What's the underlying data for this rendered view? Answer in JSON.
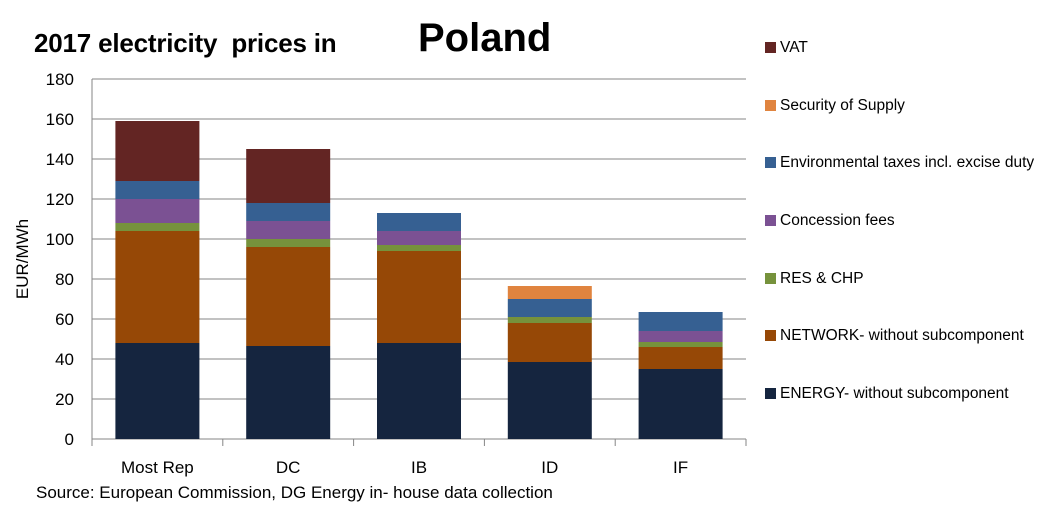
{
  "title": {
    "prefix": "2017 electricity  prices in",
    "country": "Poland"
  },
  "source": "Source: European Commission, DG Energy in- house data collection",
  "colors": {
    "ENERGY": "#15253f",
    "NETWORK": "#964806",
    "RES": "#76923c",
    "CONCESSION": "#7b5193",
    "ENVTAX": "#366092",
    "SECURITY": "#e0843f",
    "VAT": "#632523"
  },
  "chart_data": {
    "type": "bar",
    "stacked": true,
    "title": "2017 electricity  prices in Poland",
    "xlabel": "",
    "ylabel": "EUR/MWh",
    "ylim": [
      0,
      180
    ],
    "yticks": [
      0,
      20,
      40,
      60,
      80,
      100,
      120,
      140,
      160,
      180
    ],
    "grid": true,
    "categories": [
      "Most Rep",
      "DC",
      "IB",
      "ID",
      "IF"
    ],
    "series": [
      {
        "name": "ENERGY- without subcomponent",
        "key": "ENERGY",
        "values": [
          48,
          46.5,
          48,
          38.5,
          35
        ]
      },
      {
        "name": "NETWORK- without subcomponent",
        "key": "NETWORK",
        "values": [
          56,
          49.5,
          46,
          19.5,
          11
        ]
      },
      {
        "name": "RES & CHP",
        "key": "RES",
        "values": [
          4,
          4,
          3,
          3,
          2.5
        ]
      },
      {
        "name": "Concession fees",
        "key": "CONCESSION",
        "values": [
          12,
          9,
          7,
          0,
          5.5
        ]
      },
      {
        "name": "Environmental taxes incl. excise duty",
        "key": "ENVTAX",
        "values": [
          9,
          9,
          9,
          9,
          9.5
        ]
      },
      {
        "name": "Security of Supply",
        "key": "SECURITY",
        "values": [
          0,
          0,
          0,
          6.5,
          0
        ]
      },
      {
        "name": "VAT",
        "key": "VAT",
        "values": [
          30,
          27,
          0,
          0,
          0
        ]
      }
    ]
  },
  "legend": {
    "items": [
      {
        "key": "VAT",
        "label": "VAT"
      },
      {
        "key": "SECURITY",
        "label": "Security of Supply"
      },
      {
        "key": "ENVTAX",
        "label": "Environmental taxes incl. excise duty"
      },
      {
        "key": "CONCESSION",
        "label": "Concession fees"
      },
      {
        "key": "RES",
        "label": "RES & CHP"
      },
      {
        "key": "NETWORK",
        "label": "NETWORK- without subcomponent"
      },
      {
        "key": "ENERGY",
        "label": "ENERGY- without subcomponent"
      }
    ]
  }
}
